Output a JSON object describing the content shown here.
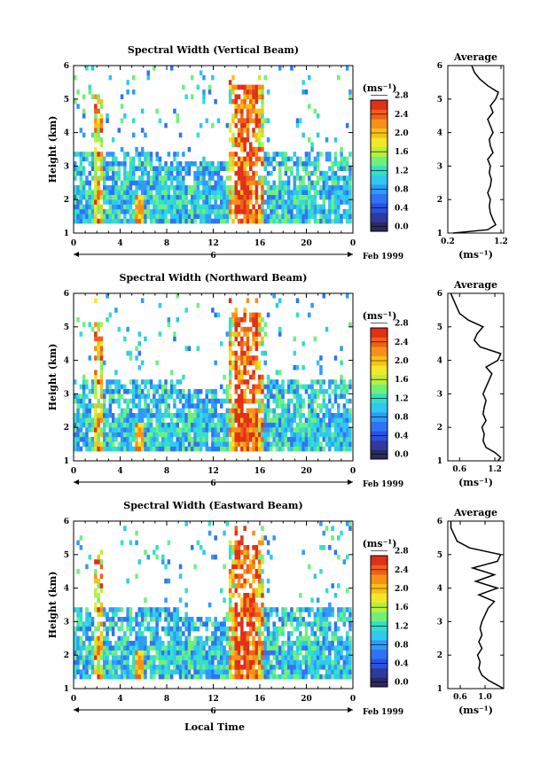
{
  "common": {
    "ylabel": "Height (km)",
    "y_ticks": [
      "1",
      "2",
      "3",
      "4",
      "5",
      "6"
    ],
    "x_ticks": [
      "0",
      "4",
      "8",
      "12",
      "16",
      "20",
      "0"
    ],
    "day_label": "6",
    "date_label": "Feb 1999",
    "xlabel": "Local Time",
    "colorbar_unit": "(ms⁻¹)",
    "colorbar_ticks": [
      "0.0",
      "0.4",
      "0.8",
      "1.2",
      "1.6",
      "2.0",
      "2.4",
      "2.8"
    ],
    "colorbar_colors": [
      "#2a2a5e",
      "#2f3aa0",
      "#2a52e0",
      "#2f73f5",
      "#2f9bf8",
      "#2ec8f0",
      "#33e0c8",
      "#70f07a",
      "#b8f03a",
      "#f0e828",
      "#f8c018",
      "#f89018",
      "#f06018",
      "#e03018"
    ],
    "avg_title": "Average",
    "avg_xlabel": "(ms⁻¹)",
    "avg_y_ticks": [
      "1",
      "2",
      "3",
      "4",
      "5",
      "6"
    ]
  },
  "chart_data": [
    {
      "type": "heatmap",
      "title": "Spectral Width (Vertical Beam)",
      "avg_x_ticks": [
        "0.2",
        "1.2"
      ],
      "avg_xlim": [
        0.2,
        1.25
      ],
      "avg_profile": {
        "height": [
          1.0,
          1.1,
          1.25,
          1.4,
          1.6,
          1.8,
          2.0,
          2.2,
          2.4,
          2.6,
          2.8,
          3.0,
          3.2,
          3.4,
          3.6,
          3.8,
          4.0,
          4.2,
          4.4,
          4.6,
          4.8,
          5.0,
          5.2,
          5.4,
          5.6,
          5.8,
          6.0
        ],
        "value": [
          0.3,
          0.95,
          1.1,
          1.05,
          1.0,
          0.98,
          1.0,
          0.95,
          1.0,
          1.02,
          0.98,
          1.0,
          0.95,
          1.05,
          1.0,
          0.98,
          1.05,
          1.0,
          0.95,
          1.05,
          1.0,
          1.1,
          1.15,
          0.95,
          0.8,
          0.7,
          0.65
        ]
      }
    },
    {
      "type": "heatmap",
      "title": "Spectral Width (Northward Beam)",
      "avg_x_ticks": [
        "0.6",
        "1.2"
      ],
      "avg_xlim": [
        0.4,
        1.35
      ],
      "avg_profile": {
        "height": [
          1.0,
          1.1,
          1.25,
          1.4,
          1.6,
          1.8,
          2.0,
          2.2,
          2.4,
          2.6,
          2.8,
          3.0,
          3.2,
          3.4,
          3.6,
          3.8,
          4.0,
          4.2,
          4.4,
          4.6,
          4.8,
          5.0,
          5.2,
          5.4,
          5.6,
          5.8,
          6.0
        ],
        "value": [
          1.25,
          1.3,
          1.2,
          1.05,
          1.0,
          1.02,
          0.98,
          1.05,
          1.0,
          1.02,
          1.05,
          1.0,
          1.05,
          1.1,
          1.15,
          1.05,
          1.25,
          1.3,
          0.95,
          0.85,
          0.9,
          1.0,
          0.75,
          0.6,
          0.55,
          0.5,
          0.45
        ]
      }
    },
    {
      "type": "heatmap",
      "title": "Spectral Width (Eastward Beam)",
      "avg_x_ticks": [
        "0.6",
        "1.0"
      ],
      "avg_xlim": [
        0.4,
        1.3
      ],
      "avg_profile": {
        "height": [
          1.0,
          1.1,
          1.25,
          1.4,
          1.6,
          1.8,
          2.0,
          2.2,
          2.4,
          2.6,
          2.8,
          3.0,
          3.2,
          3.4,
          3.6,
          3.8,
          4.0,
          4.2,
          4.4,
          4.6,
          4.8,
          5.0,
          5.2,
          5.4,
          5.6,
          5.8,
          6.0
        ],
        "value": [
          1.3,
          1.2,
          1.05,
          0.95,
          0.9,
          0.92,
          0.88,
          0.95,
          0.9,
          0.95,
          0.92,
          0.95,
          1.0,
          1.05,
          1.15,
          0.9,
          1.2,
          0.85,
          1.15,
          0.8,
          1.2,
          1.25,
          0.75,
          0.55,
          0.5,
          0.45,
          0.45
        ]
      }
    }
  ]
}
